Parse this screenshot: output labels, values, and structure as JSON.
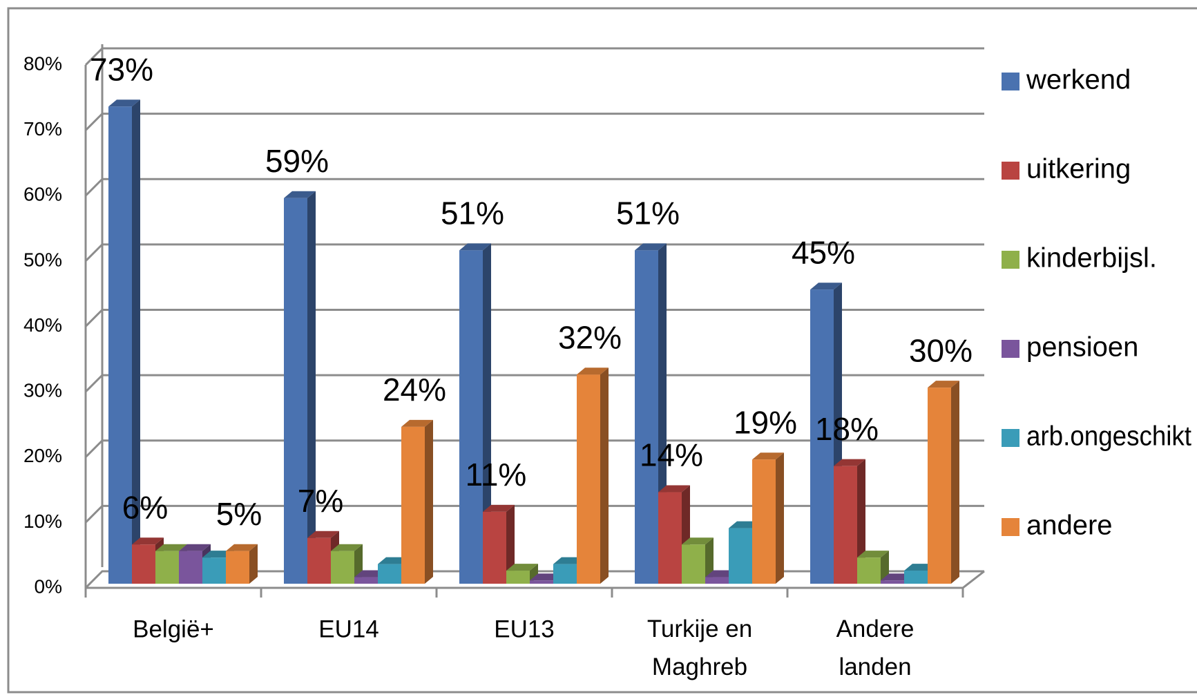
{
  "chart_data": {
    "type": "bar3d",
    "categories": [
      "België+",
      "EU14",
      "EU13",
      "Turkije en Maghreb",
      "Andere landen"
    ],
    "series": [
      {
        "name": "werkend",
        "color": "#4a72b0",
        "values": [
          73,
          59,
          51,
          51,
          45
        ],
        "value_labels": [
          "73%",
          "59%",
          "51%",
          "51%",
          "45%"
        ]
      },
      {
        "name": "uitkering",
        "color": "#b94441",
        "values": [
          6,
          7,
          11,
          14,
          18
        ],
        "value_labels": [
          "6%",
          "7%",
          "11%",
          "14%",
          "18%"
        ]
      },
      {
        "name": "kinderbijsl.",
        "color": "#8fb04a",
        "values": [
          5,
          5,
          2,
          6,
          4
        ]
      },
      {
        "name": "pensioen",
        "color": "#7a559c",
        "values": [
          5,
          1,
          0.5,
          1,
          0.5
        ]
      },
      {
        "name": "arb.ongeschikt",
        "color": "#3a9cb8",
        "values": [
          4,
          3,
          3,
          8.5,
          2
        ]
      },
      {
        "name": "andere",
        "color": "#e5843a",
        "values": [
          5,
          24,
          32,
          19,
          30
        ],
        "value_labels": [
          "5%",
          "24%",
          "32%",
          "19%",
          "30%"
        ]
      }
    ],
    "ylim": [
      0,
      80
    ],
    "yticks": [
      {
        "value": 0,
        "label": "0%"
      },
      {
        "value": 10,
        "label": "10%"
      },
      {
        "value": 20,
        "label": "20%"
      },
      {
        "value": 30,
        "label": "30%"
      },
      {
        "value": 40,
        "label": "40%"
      },
      {
        "value": 50,
        "label": "50%"
      },
      {
        "value": 60,
        "label": "60%"
      },
      {
        "value": 70,
        "label": "70%"
      },
      {
        "value": 80,
        "label": "80%"
      }
    ],
    "grid": true,
    "legend": "right"
  }
}
